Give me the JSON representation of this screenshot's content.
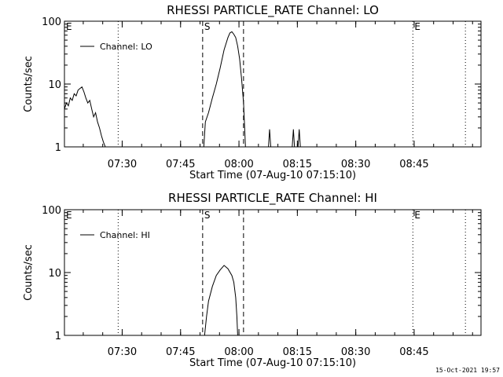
{
  "footer": {
    "timestamp": "15-Oct-2021 19:57"
  },
  "chart_data": [
    {
      "type": "line",
      "title": "RHESSI PARTICLE_RATE Channel: LO",
      "xlabel": "Start Time (07-Aug-10 07:15:10)",
      "ylabel": "Counts/sec",
      "yscale": "log",
      "ylim": [
        1,
        100
      ],
      "yticks": [
        {
          "value": 1,
          "label": "1"
        },
        {
          "value": 10,
          "label": "10"
        },
        {
          "value": 100,
          "label": "100"
        }
      ],
      "xlim_min": [
        0,
        107
      ],
      "xticks": [
        {
          "value": 14.83,
          "label": "07:30"
        },
        {
          "value": 29.83,
          "label": "07:45"
        },
        {
          "value": 44.83,
          "label": "08:00"
        },
        {
          "value": 59.83,
          "label": "08:15"
        },
        {
          "value": 74.83,
          "label": "08:30"
        },
        {
          "value": 89.83,
          "label": "08:45"
        }
      ],
      "legend": {
        "label": "Channel: LO",
        "placement": "top-left"
      },
      "markers": [
        {
          "type": "dotted",
          "x": 13.8,
          "label": ""
        },
        {
          "type": "dashed",
          "x": 35.5,
          "label": "S"
        },
        {
          "type": "dashed",
          "x": 46.0,
          "label": ""
        },
        {
          "type": "dotted",
          "x": 89.5,
          "label": "E"
        },
        {
          "type": "dotted",
          "x": 103.0,
          "label": ""
        }
      ],
      "edge_labels": {
        "left_e": "E"
      },
      "series": [
        {
          "name": "Channel: LO",
          "points": [
            [
              0,
              4
            ],
            [
              0.5,
              5
            ],
            [
              1,
              4.5
            ],
            [
              1.5,
              6
            ],
            [
              2,
              5.5
            ],
            [
              2.5,
              7
            ],
            [
              3,
              6.5
            ],
            [
              3.5,
              8
            ],
            [
              4,
              8.5
            ],
            [
              4.5,
              9
            ],
            [
              5,
              7.5
            ],
            [
              5.5,
              6
            ],
            [
              6,
              5
            ],
            [
              6.5,
              5.5
            ],
            [
              7,
              4
            ],
            [
              7.5,
              3
            ],
            [
              8,
              3.5
            ],
            [
              8.5,
              2.5
            ],
            [
              9,
              2
            ],
            [
              9.5,
              1.5
            ],
            [
              10,
              1.2
            ],
            [
              10.5,
              1
            ]
          ]
        },
        {
          "name": "Channel: LO",
          "points": [
            [
              35.8,
              1
            ],
            [
              36.2,
              2.5
            ],
            [
              37,
              3.5
            ],
            [
              38,
              6
            ],
            [
              39,
              10
            ],
            [
              40,
              18
            ],
            [
              41,
              35
            ],
            [
              42,
              55
            ],
            [
              42.5,
              65
            ],
            [
              43,
              68
            ],
            [
              43.5,
              62
            ],
            [
              44,
              55
            ],
            [
              44.5,
              40
            ],
            [
              45,
              25
            ],
            [
              45.5,
              12
            ],
            [
              46,
              5
            ],
            [
              46.3,
              2
            ],
            [
              46.5,
              1
            ]
          ]
        },
        {
          "name": "Channel: LO",
          "points": [
            [
              52.4,
              1
            ],
            [
              52.7,
              1.9
            ],
            [
              53,
              1
            ]
          ]
        },
        {
          "name": "Channel: LO",
          "points": [
            [
              58.5,
              1
            ],
            [
              58.8,
              1.9
            ],
            [
              59.1,
              1
            ]
          ]
        },
        {
          "name": "Channel: LO",
          "points": [
            [
              60,
              1
            ],
            [
              60.3,
              1.9
            ],
            [
              60.6,
              1
            ]
          ]
        }
      ]
    },
    {
      "type": "line",
      "title": "RHESSI PARTICLE_RATE Channel: HI",
      "xlabel": "Start Time (07-Aug-10 07:15:10)",
      "ylabel": "Counts/sec",
      "yscale": "log",
      "ylim": [
        1,
        100
      ],
      "yticks": [
        {
          "value": 1,
          "label": "1"
        },
        {
          "value": 10,
          "label": "10"
        },
        {
          "value": 100,
          "label": "100"
        }
      ],
      "xlim_min": [
        0,
        107
      ],
      "xticks": [
        {
          "value": 14.83,
          "label": "07:30"
        },
        {
          "value": 29.83,
          "label": "07:45"
        },
        {
          "value": 44.83,
          "label": "08:00"
        },
        {
          "value": 59.83,
          "label": "08:15"
        },
        {
          "value": 74.83,
          "label": "08:30"
        },
        {
          "value": 89.83,
          "label": "08:45"
        }
      ],
      "legend": {
        "label": "Channel: HI",
        "placement": "top-left"
      },
      "markers": [
        {
          "type": "dotted",
          "x": 13.8,
          "label": ""
        },
        {
          "type": "dashed",
          "x": 35.5,
          "label": "S"
        },
        {
          "type": "dashed",
          "x": 46.0,
          "label": ""
        },
        {
          "type": "dotted",
          "x": 89.5,
          "label": "E"
        },
        {
          "type": "dotted",
          "x": 103.0,
          "label": ""
        }
      ],
      "edge_labels": {
        "left_e": "E"
      },
      "series": [
        {
          "name": "Channel: HI",
          "points": [
            [
              36,
              1
            ],
            [
              36.5,
              2
            ],
            [
              37,
              3.5
            ],
            [
              38,
              6
            ],
            [
              39,
              9
            ],
            [
              40,
              11
            ],
            [
              41,
              13
            ],
            [
              42,
              11.5
            ],
            [
              43,
              9
            ],
            [
              43.5,
              7
            ],
            [
              44,
              4
            ],
            [
              44.3,
              2
            ],
            [
              44.5,
              1
            ]
          ]
        }
      ]
    }
  ]
}
